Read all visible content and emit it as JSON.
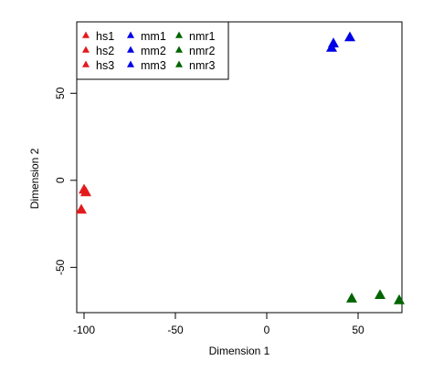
{
  "chart_data": {
    "type": "scatter",
    "title": "",
    "xlabel": "Dimension 1",
    "ylabel": "Dimension 2",
    "xlim": [
      -104,
      74
    ],
    "ylim": [
      -76,
      91
    ],
    "x_ticks": [
      -100,
      -50,
      0,
      50
    ],
    "y_ticks": [
      -50,
      0,
      50
    ],
    "grid": false,
    "legend_position": "top-left",
    "marker": "triangle",
    "series": [
      {
        "name": "hs1",
        "color": "#e31a1c",
        "x": -100.0,
        "y": -5.5
      },
      {
        "name": "hs2",
        "color": "#e31a1c",
        "x": -99.0,
        "y": -7.0
      },
      {
        "name": "hs3",
        "color": "#e31a1c",
        "x": -101.5,
        "y": -17.0
      },
      {
        "name": "mm1",
        "color": "#0000e6",
        "x": 36.5,
        "y": 78.5
      },
      {
        "name": "mm2",
        "color": "#0000e6",
        "x": 35.5,
        "y": 76.0
      },
      {
        "name": "mm3",
        "color": "#0000e6",
        "x": 45.5,
        "y": 82.0
      },
      {
        "name": "nmr1",
        "color": "#006400",
        "x": 46.5,
        "y": -68.0
      },
      {
        "name": "nmr2",
        "color": "#006400",
        "x": 62.0,
        "y": -66.0
      },
      {
        "name": "nmr3",
        "color": "#006400",
        "x": 72.5,
        "y": -69.0
      }
    ],
    "legend_columns": [
      [
        "hs1",
        "hs2",
        "hs3"
      ],
      [
        "mm1",
        "mm2",
        "mm3"
      ],
      [
        "nmr1",
        "nmr2",
        "nmr3"
      ]
    ]
  }
}
